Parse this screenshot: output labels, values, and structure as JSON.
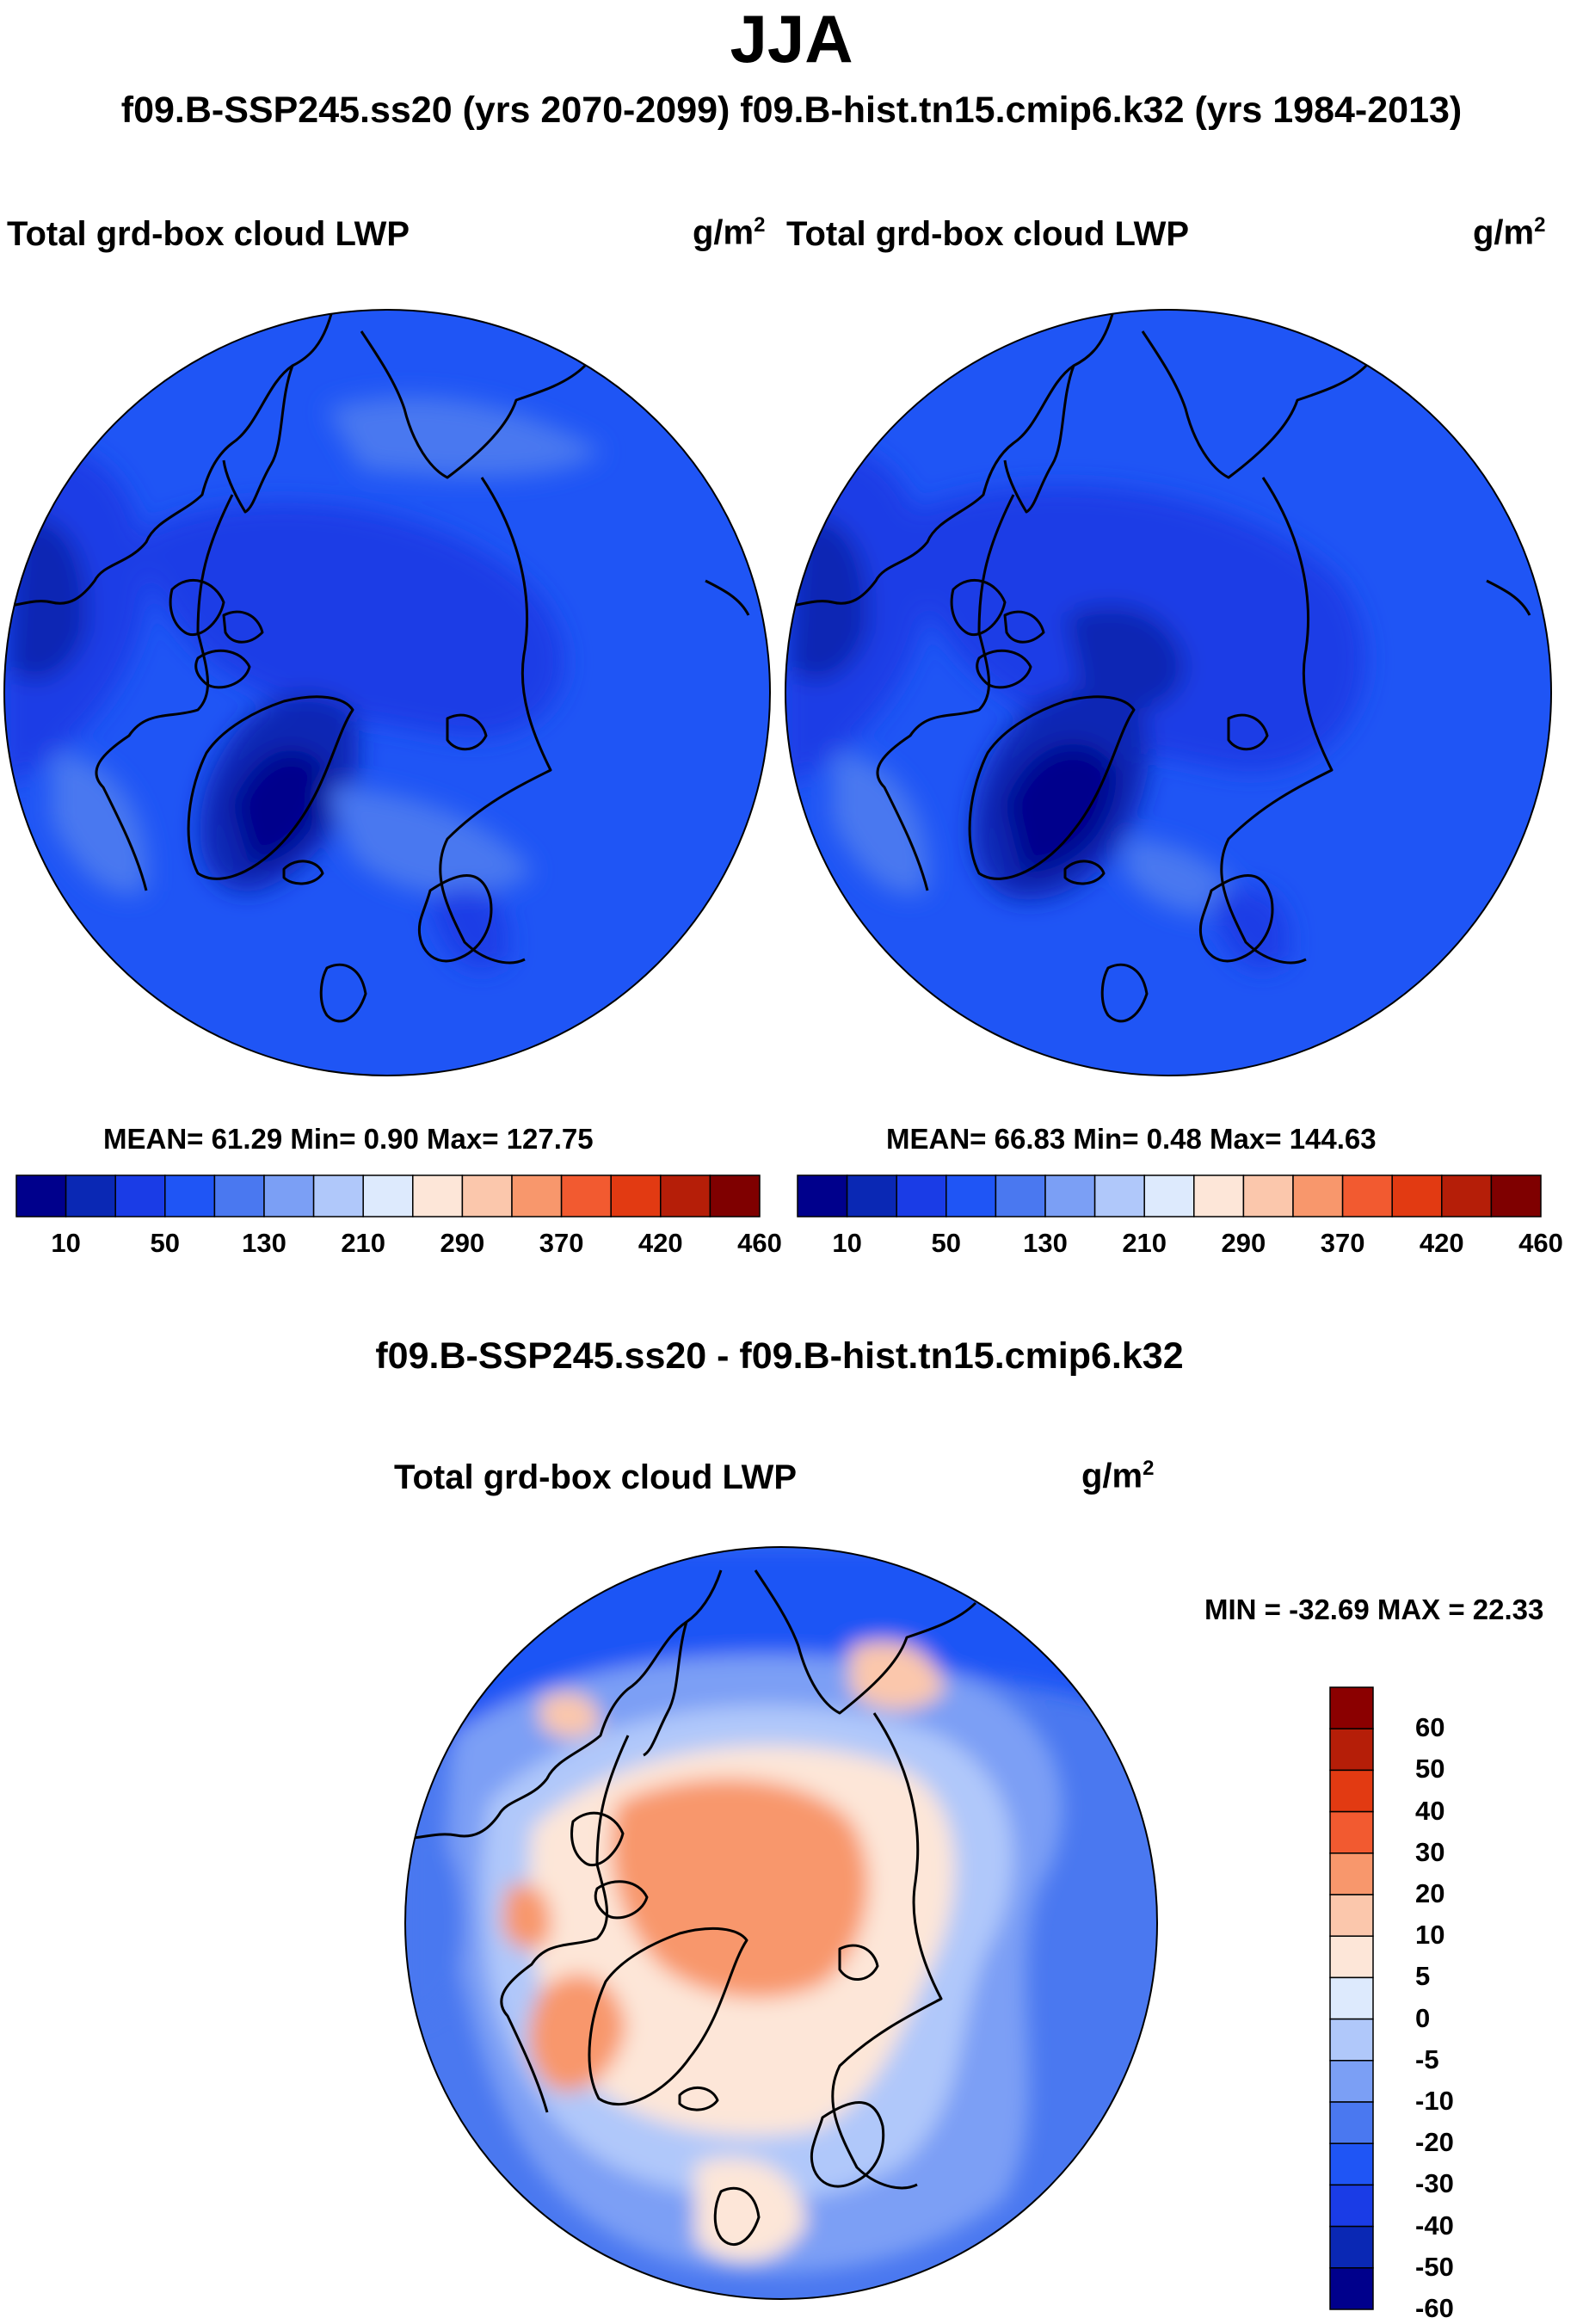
{
  "chart_data": [
    {
      "type": "heatmap",
      "panel": "left",
      "title": "Total grd-box cloud LWP",
      "units": "g/m",
      "units_sup": "2",
      "projection": "north-polar-stereographic",
      "stats": {
        "mean_label": "MEAN=",
        "mean": "61.29",
        "min_label": "Min=",
        "min": "0.90",
        "max_label": "Max=",
        "max": "127.75"
      },
      "colorbar": {
        "orientation": "horizontal",
        "colors": [
          "#00008c",
          "#0a28b4",
          "#1a3ce6",
          "#1f55f5",
          "#4a78f0",
          "#7b9ff5",
          "#b0c8fa",
          "#ddeafd",
          "#fde6d8",
          "#fbc7ac",
          "#f8976c",
          "#f25a30",
          "#e23a12",
          "#b51e08",
          "#7f0000"
        ],
        "tick_labels": [
          "10",
          "50",
          "130",
          "210",
          "290",
          "370",
          "420",
          "460"
        ]
      }
    },
    {
      "type": "heatmap",
      "panel": "right",
      "title": "Total grd-box cloud LWP",
      "units": "g/m",
      "units_sup": "2",
      "projection": "north-polar-stereographic",
      "stats": {
        "mean_label": "MEAN=",
        "mean": "66.83",
        "min_label": "Min=",
        "min": "0.48",
        "max_label": "Max=",
        "max": "144.63"
      },
      "colorbar": {
        "orientation": "horizontal",
        "colors": [
          "#00008c",
          "#0a28b4",
          "#1a3ce6",
          "#1f55f5",
          "#4a78f0",
          "#7b9ff5",
          "#b0c8fa",
          "#ddeafd",
          "#fde6d8",
          "#fbc7ac",
          "#f8976c",
          "#f25a30",
          "#e23a12",
          "#b51e08",
          "#7f0000"
        ],
        "tick_labels": [
          "10",
          "50",
          "130",
          "210",
          "290",
          "370",
          "420",
          "460"
        ]
      }
    },
    {
      "type": "heatmap",
      "panel": "difference",
      "title": "Total grd-box cloud LWP",
      "units": "g/m",
      "units_sup": "2",
      "projection": "north-polar-stereographic",
      "stats": {
        "text": "MIN = -32.69 MAX =  22.33"
      },
      "colorbar": {
        "orientation": "vertical",
        "colors_top_to_bottom": [
          "#8b0000",
          "#b51e08",
          "#e23a12",
          "#f25a30",
          "#f8976c",
          "#fbc7ac",
          "#fde6d8",
          "#ddeafd",
          "#b0c8fa",
          "#7b9ff5",
          "#4a78f0",
          "#1f55f5",
          "#1a3ce6",
          "#0a28b4",
          "#00008c"
        ],
        "tick_labels_top_to_bottom": [
          "60",
          "50",
          "40",
          "30",
          "20",
          "10",
          "5",
          "0",
          "-5",
          "-10",
          "-20",
          "-30",
          "-40",
          "-50",
          "-60"
        ]
      }
    }
  ],
  "figure": {
    "title": "JJA",
    "subtitle": "f09.B-SSP245.ss20 (yrs 2070-2099)  f09.B-hist.tn15.cmip6.k32 (yrs 1984-2013)",
    "difference_title": "f09.B-SSP245.ss20 - f09.B-hist.tn15.cmip6.k32"
  }
}
